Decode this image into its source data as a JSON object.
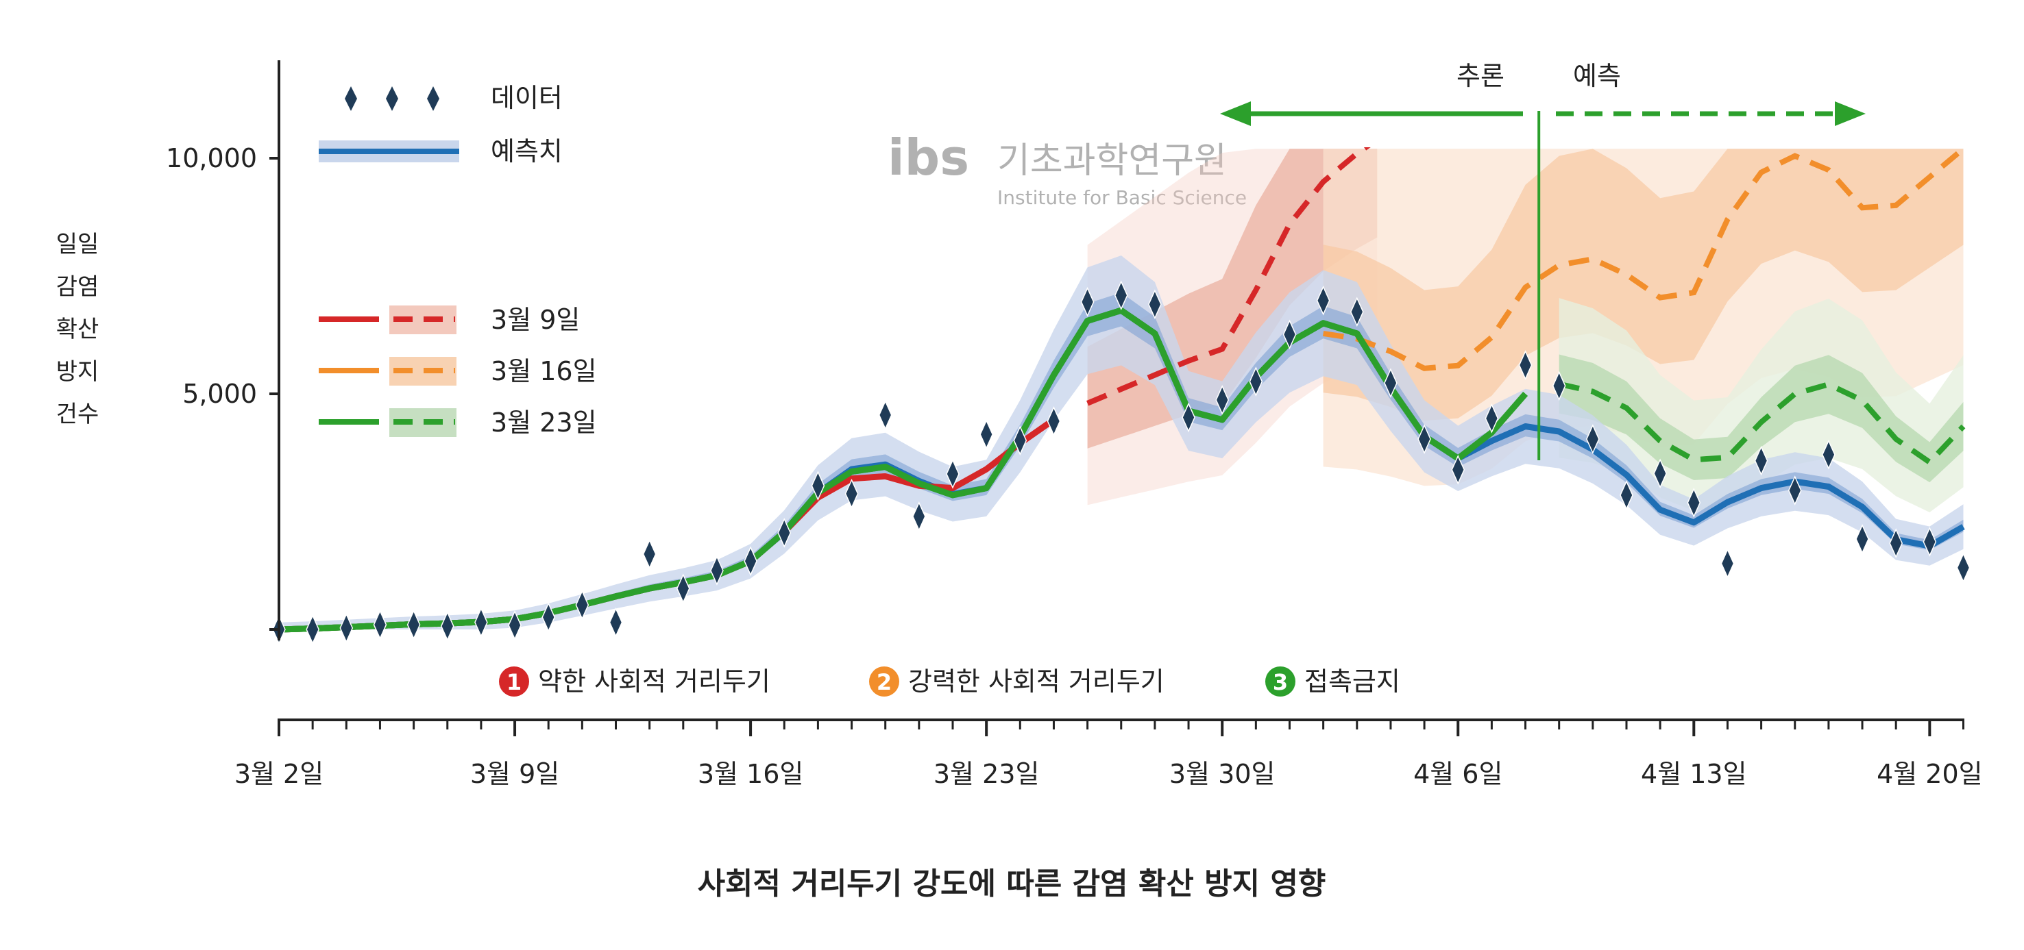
{
  "chart_data": {
    "type": "line",
    "title": "사회적 거리두기 강도에 따른 감염 확산 방지 영향",
    "ylabel": [
      "일일",
      "감염",
      "확산",
      "방지",
      "건수"
    ],
    "xlabel": "",
    "x_start_date": "3월 2일",
    "x_tick_labels": [
      "3월 2일",
      "3월 9일",
      "3월 16일",
      "3월 23일",
      "3월 30일",
      "4월 6일",
      "4월 13일",
      "4월 20일"
    ],
    "x_tick_days": [
      0,
      7,
      14,
      21,
      28,
      35,
      42,
      49
    ],
    "y_ticks": [
      {
        "value": 0,
        "label": ""
      },
      {
        "value": 5000,
        "label": "5,000"
      },
      {
        "value": 10000,
        "label": "10,000"
      }
    ],
    "ylim": [
      -300,
      12000
    ],
    "grid": false,
    "data_points": {
      "name": "데이터",
      "days": [
        0,
        1,
        2,
        3,
        4,
        5,
        6,
        7,
        8,
        9,
        10,
        11,
        12,
        13,
        14,
        15,
        16,
        17,
        18,
        19,
        20,
        21,
        22,
        23,
        24,
        25,
        26,
        27,
        28,
        29,
        30,
        31,
        32,
        33,
        34,
        35,
        36,
        37,
        38,
        39,
        40,
        41,
        42,
        43,
        44,
        45,
        46,
        47,
        48,
        49,
        50
      ],
      "values": [
        0,
        0,
        30,
        100,
        100,
        70,
        150,
        90,
        260,
        520,
        150,
        1600,
        870,
        1250,
        1450,
        2050,
        3050,
        2880,
        4550,
        2400,
        3300,
        4140,
        4010,
        4420,
        6950,
        7090,
        6900,
        4500,
        4870,
        5260,
        6260,
        6980,
        6740,
        5230,
        4040,
        3390,
        4480,
        5610,
        5170,
        4040,
        2850,
        3310,
        2690,
        1400,
        3580,
        2950,
        3710,
        1920,
        1830,
        1860,
        1310
      ]
    },
    "fit": {
      "name": "예측치",
      "color": "#1f6fb5",
      "days": [
        0,
        1,
        2,
        3,
        4,
        5,
        6,
        7,
        8,
        9,
        10,
        11,
        12,
        13,
        14,
        15,
        16,
        17,
        18,
        19,
        20,
        21,
        22,
        23,
        24,
        25,
        26,
        27,
        28,
        29,
        30,
        31,
        32,
        33,
        34,
        35,
        36,
        37,
        38,
        39,
        40,
        41,
        42,
        43,
        44,
        45,
        46,
        47,
        48,
        49,
        50
      ],
      "values": [
        0,
        20,
        50,
        80,
        110,
        130,
        160,
        220,
        350,
        520,
        700,
        870,
        1000,
        1150,
        1450,
        2070,
        2900,
        3400,
        3500,
        3150,
        2870,
        3000,
        4100,
        5400,
        6550,
        6770,
        6280,
        4640,
        4450,
        5350,
        6090,
        6500,
        6280,
        5130,
        4100,
        3630,
        4000,
        4310,
        4200,
        3820,
        3280,
        2540,
        2270,
        2700,
        3000,
        3140,
        3030,
        2600,
        1910,
        1770,
        2180
      ]
    },
    "series": [
      {
        "name": "3월 9일",
        "color": "#d62728",
        "solid": {
          "days": [
            0,
            1,
            2,
            3,
            4,
            5,
            6,
            7,
            8,
            9,
            10,
            11,
            12,
            13,
            14,
            15,
            16,
            17,
            18,
            19,
            20,
            21,
            22,
            23
          ],
          "values": [
            0,
            20,
            50,
            80,
            110,
            130,
            160,
            220,
            350,
            520,
            700,
            870,
            1000,
            1150,
            1450,
            2070,
            2800,
            3200,
            3250,
            3050,
            3000,
            3400,
            3950,
            4450
          ]
        },
        "dashed": {
          "days": [
            24,
            25,
            26,
            27,
            28,
            29,
            30,
            31,
            32,
            32.6
          ],
          "values": [
            4800,
            5100,
            5400,
            5700,
            5950,
            7200,
            8600,
            9500,
            10100,
            10400
          ]
        }
      },
      {
        "name": "3월 16일",
        "color": "#f28e2b",
        "solid": {
          "days": [],
          "values": []
        },
        "dashed": {
          "days": [
            31,
            32,
            33,
            34,
            35,
            36,
            37,
            38,
            39,
            40,
            41,
            42,
            43,
            44,
            45,
            46,
            47,
            48,
            49,
            50
          ],
          "values": [
            6280,
            6170,
            5900,
            5540,
            5600,
            6200,
            7260,
            7730,
            7860,
            7530,
            7040,
            7150,
            8700,
            9700,
            10050,
            9750,
            8950,
            9000,
            9600,
            10200
          ]
        }
      },
      {
        "name": "3월 23일",
        "color": "#2ca02c",
        "solid": {
          "days": [
            0,
            1,
            2,
            3,
            4,
            5,
            6,
            7,
            8,
            9,
            10,
            11,
            12,
            13,
            14,
            15,
            16,
            17,
            18,
            19,
            20,
            21,
            22,
            23,
            24,
            25,
            26,
            27,
            28,
            29,
            30,
            31,
            32,
            33,
            34,
            35,
            36,
            37
          ],
          "values": [
            0,
            20,
            50,
            80,
            110,
            130,
            160,
            220,
            350,
            520,
            700,
            870,
            1000,
            1150,
            1450,
            2070,
            2900,
            3350,
            3450,
            3100,
            2850,
            3000,
            4100,
            5400,
            6550,
            6770,
            6280,
            4640,
            4450,
            5350,
            6090,
            6500,
            6280,
            5130,
            4100,
            3630,
            4180,
            5000
          ]
        },
        "dashed": {
          "days": [
            38,
            39,
            40,
            41,
            42,
            43,
            44,
            45,
            46,
            47,
            48,
            49,
            50
          ],
          "values": [
            5210,
            5050,
            4700,
            4000,
            3600,
            3650,
            4400,
            5000,
            5200,
            4860,
            4040,
            3550,
            4310
          ]
        }
      }
    ],
    "legend_top": {
      "data_label": "데이터",
      "fit_label": "예측치"
    },
    "legend_placement": "top-left",
    "annotations": {
      "inference_label": "추론",
      "forecast_label": "예측",
      "divider_day": 37.4
    },
    "measures": [
      {
        "number": "1",
        "label": "약한 사회적 거리두기",
        "color": "#d62728"
      },
      {
        "number": "2",
        "label": "강력한 사회적 거리두기",
        "color": "#f28e2b"
      },
      {
        "number": "3",
        "label": "접촉금지",
        "color": "#2ca02c"
      }
    ],
    "watermark": {
      "logo": "ibs",
      "name_ko": "기초과학연구원",
      "name_en": "Institute for Basic Science"
    },
    "point_color": "#1f3b57",
    "annotation_color": "#2ca02c"
  }
}
